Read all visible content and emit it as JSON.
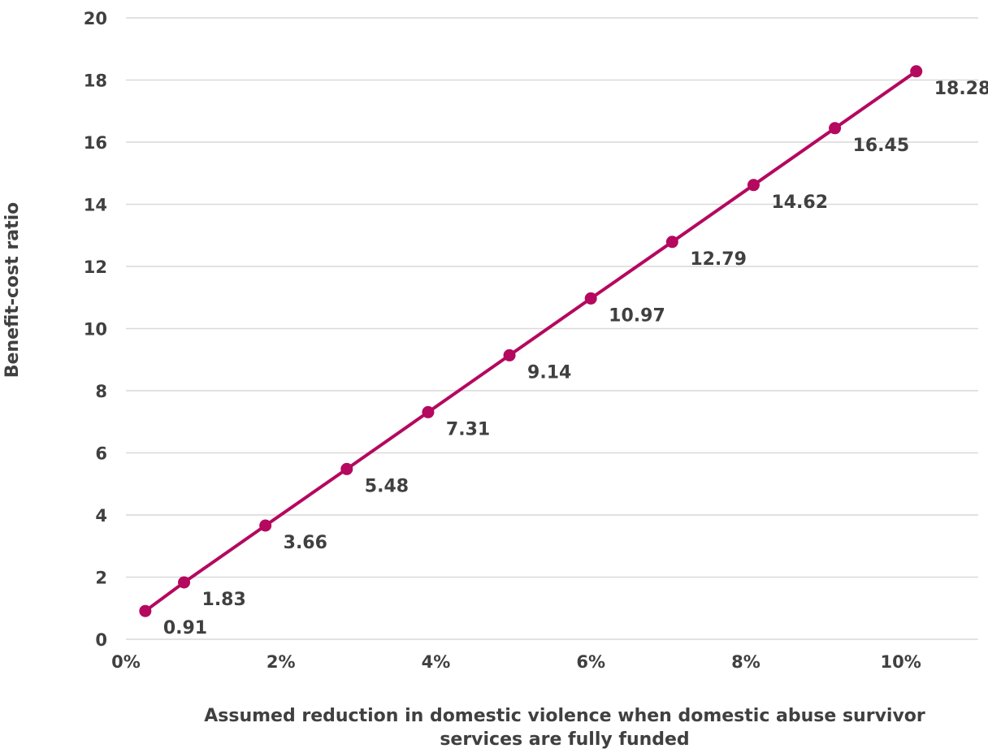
{
  "chart_data": {
    "type": "line",
    "ylabel": "Benefit-cost ratio",
    "xlabel_lines": [
      "Assumed reduction in domestic violence when domestic abuse survivor",
      "services are fully funded"
    ],
    "xlim": [
      0,
      11
    ],
    "ylim": [
      0,
      20
    ],
    "x_ticks": [
      0,
      2,
      4,
      6,
      8,
      10
    ],
    "x_tick_labels": [
      "0%",
      "2%",
      "4%",
      "6%",
      "8%",
      "10%"
    ],
    "y_ticks": [
      0,
      2,
      4,
      6,
      8,
      10,
      12,
      14,
      16,
      18,
      20
    ],
    "y_tick_labels": [
      "0",
      "2",
      "4",
      "6",
      "8",
      "10",
      "12",
      "14",
      "16",
      "18",
      "20"
    ],
    "grid": true,
    "legend": "none",
    "series": [
      {
        "color": "#b5085f",
        "x": [
          0.25,
          0.75,
          1.8,
          2.85,
          3.9,
          4.95,
          6.0,
          7.05,
          8.1,
          9.15,
          10.2
        ],
        "y": [
          0.91,
          1.83,
          3.66,
          5.48,
          7.31,
          9.14,
          10.97,
          12.79,
          14.62,
          16.45,
          18.28
        ],
        "labels": [
          "0.91",
          "1.83",
          "3.66",
          "5.48",
          "7.31",
          "9.14",
          "10.97",
          "12.79",
          "14.62",
          "16.45",
          "18.28"
        ]
      }
    ]
  }
}
